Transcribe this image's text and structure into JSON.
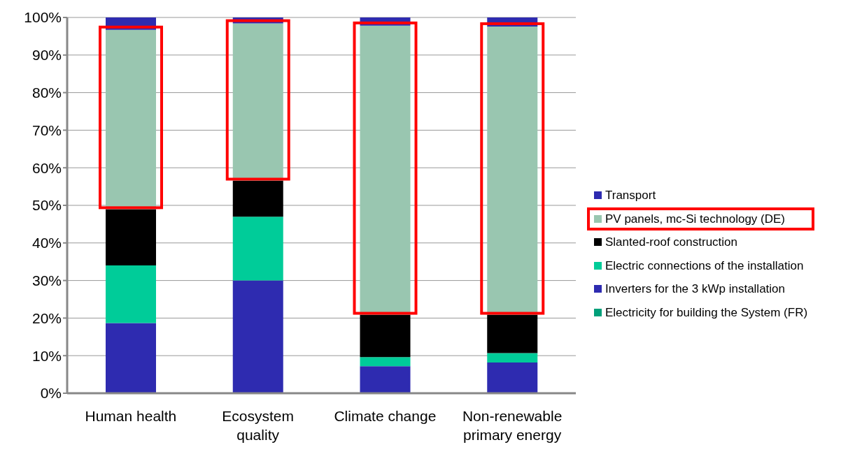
{
  "chart_data": {
    "type": "bar",
    "stacked": true,
    "categories": [
      "Human health",
      "Ecosystem quality",
      "Climate change",
      "Non-renewable primary energy"
    ],
    "series": [
      {
        "name": "Electricity for building the System (FR)",
        "color": "#00a07a",
        "values": [
          0,
          0,
          0,
          0
        ]
      },
      {
        "name": "Inverters for the 3 kWp installation",
        "color": "#2e2bb0",
        "values": [
          18.7,
          30,
          7.2,
          8.2
        ]
      },
      {
        "name": "Electric connections of the installation",
        "color": "#00cc99",
        "values": [
          15.3,
          17,
          2.4,
          2.5
        ]
      },
      {
        "name": "Slanted-roof construction",
        "color": "#000000",
        "values": [
          15,
          9.6,
          11.3,
          10.2
        ]
      },
      {
        "name": "PV panels, mc-Si technology (DE)",
        "color": "#99c6b0",
        "values": [
          47.7,
          41.8,
          76.9,
          76.7
        ]
      },
      {
        "name": "Transport",
        "color": "#2e2bb0",
        "values": [
          3.3,
          1.6,
          2.2,
          2.4
        ]
      }
    ],
    "ylim": [
      0,
      100
    ],
    "yticks": [
      {
        "value": 0,
        "label": "0%"
      },
      {
        "value": 10,
        "label": "10%"
      },
      {
        "value": 20,
        "label": "20%"
      },
      {
        "value": 30,
        "label": "30%"
      },
      {
        "value": 40,
        "label": "40%"
      },
      {
        "value": 50,
        "label": "50%"
      },
      {
        "value": 60,
        "label": "60%"
      },
      {
        "value": 70,
        "label": "70%"
      },
      {
        "value": 80,
        "label": "80%"
      },
      {
        "value": 90,
        "label": "90%"
      },
      {
        "value": 100,
        "label": "100%"
      }
    ],
    "grid": "y",
    "legend": "right"
  }
}
